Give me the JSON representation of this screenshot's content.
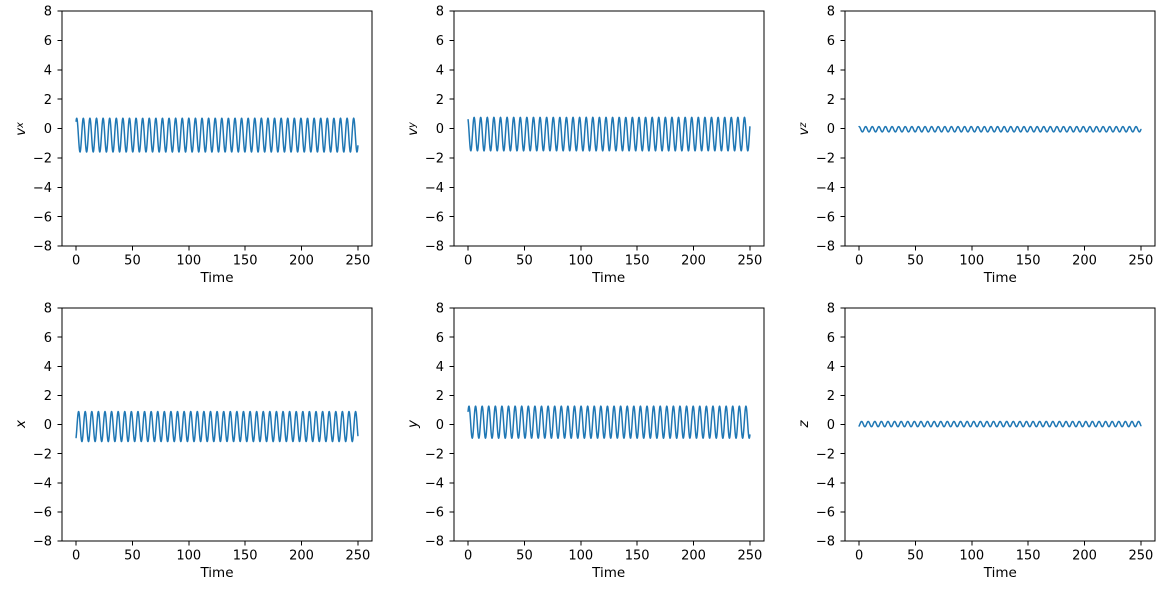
{
  "figure": {
    "background": "#ffffff",
    "rows": 2,
    "cols": 3,
    "axes_color": "#000000"
  },
  "chart_data": [
    {
      "id": "vx",
      "type": "line",
      "title": "",
      "xlabel": "Time",
      "ylabel": {
        "base": "v",
        "sub": "x"
      },
      "xlim": [
        -12.5,
        262.5
      ],
      "ylim": [
        -8,
        8
      ],
      "xticks": [
        0,
        50,
        100,
        150,
        200,
        250
      ],
      "yticks": [
        -8,
        -6,
        -4,
        -2,
        0,
        2,
        4,
        6,
        8
      ],
      "grid": false,
      "legend": "none",
      "line_color": "#1f77b4",
      "series": [
        {
          "name": "vx",
          "shape": "sinusoid",
          "t_start": 0,
          "t_end": 250,
          "mean": -0.45,
          "amplitude": 1.15,
          "period": 5.85,
          "phase_rad": -0.6,
          "observed_min": -1.6,
          "observed_max": 0.7,
          "summary": "constant-amplitude rapid oscillation, ~43 cycles over 0-250"
        }
      ]
    },
    {
      "id": "vy",
      "type": "line",
      "title": "",
      "xlabel": "Time",
      "ylabel": {
        "base": "v",
        "sub": "y"
      },
      "xlim": [
        -12.5,
        262.5
      ],
      "ylim": [
        -8,
        8
      ],
      "xticks": [
        0,
        50,
        100,
        150,
        200,
        250
      ],
      "yticks": [
        -8,
        -6,
        -4,
        -2,
        0,
        2,
        4,
        6,
        8
      ],
      "grid": false,
      "legend": "none",
      "line_color": "#1f77b4",
      "series": [
        {
          "name": "vy",
          "shape": "sinusoid",
          "t_start": 0,
          "t_end": 250,
          "mean": -0.38,
          "amplitude": 1.14,
          "period": 5.85,
          "phase_rad": 0.54,
          "observed_min": -1.52,
          "observed_max": 0.76,
          "summary": "constant-amplitude rapid oscillation, ~43 cycles over 0-250"
        }
      ]
    },
    {
      "id": "vz",
      "type": "line",
      "title": "",
      "xlabel": "Time",
      "ylabel": {
        "base": "v",
        "sub": "z"
      },
      "xlim": [
        -12.5,
        262.5
      ],
      "ylim": [
        -8,
        8
      ],
      "xticks": [
        0,
        50,
        100,
        150,
        200,
        250
      ],
      "yticks": [
        -8,
        -6,
        -4,
        -2,
        0,
        2,
        4,
        6,
        8
      ],
      "grid": false,
      "legend": "none",
      "line_color": "#1f77b4",
      "series": [
        {
          "name": "vz",
          "shape": "sinusoid",
          "t_start": 0,
          "t_end": 250,
          "mean": -0.05,
          "amplitude": 0.18,
          "period": 5.85,
          "phase_rad": 0.0,
          "observed_min": -0.23,
          "observed_max": 0.13,
          "summary": "small-amplitude ripple around zero, ~43 cycles over 0-250"
        }
      ]
    },
    {
      "id": "x",
      "type": "line",
      "title": "",
      "xlabel": "Time",
      "ylabel": {
        "base": "x",
        "sub": ""
      },
      "xlim": [
        -12.5,
        262.5
      ],
      "ylim": [
        -8,
        8
      ],
      "xticks": [
        0,
        50,
        100,
        150,
        200,
        250
      ],
      "yticks": [
        -8,
        -6,
        -4,
        -2,
        0,
        2,
        4,
        6,
        8
      ],
      "grid": false,
      "legend": "none",
      "line_color": "#1f77b4",
      "series": [
        {
          "name": "x",
          "shape": "sinusoid",
          "t_start": 0,
          "t_end": 250,
          "mean": -0.14,
          "amplitude": 1.03,
          "period": 5.85,
          "phase_rad": -2.4,
          "observed_min": -1.17,
          "observed_max": 0.89,
          "summary": "constant-amplitude rapid oscillation, ~43 cycles over 0-250"
        }
      ]
    },
    {
      "id": "y",
      "type": "line",
      "title": "",
      "xlabel": "Time",
      "ylabel": {
        "base": "y",
        "sub": ""
      },
      "xlim": [
        -12.5,
        262.5
      ],
      "ylim": [
        -8,
        8
      ],
      "xticks": [
        0,
        50,
        100,
        150,
        200,
        250
      ],
      "yticks": [
        -8,
        -6,
        -4,
        -2,
        0,
        2,
        4,
        6,
        8
      ],
      "grid": false,
      "legend": "none",
      "line_color": "#1f77b4",
      "series": [
        {
          "name": "y",
          "shape": "sinusoid",
          "t_start": 0,
          "t_end": 250,
          "mean": 0.16,
          "amplitude": 1.1,
          "period": 5.85,
          "phase_rad": -0.83,
          "observed_min": -0.94,
          "observed_max": 1.26,
          "summary": "constant-amplitude rapid oscillation offset slightly above zero, ~43 cycles"
        }
      ]
    },
    {
      "id": "z",
      "type": "line",
      "title": "",
      "xlabel": "Time",
      "ylabel": {
        "base": "z",
        "sub": ""
      },
      "xlim": [
        -12.5,
        262.5
      ],
      "ylim": [
        -8,
        8
      ],
      "xticks": [
        0,
        50,
        100,
        150,
        200,
        250
      ],
      "yticks": [
        -8,
        -6,
        -4,
        -2,
        0,
        2,
        4,
        6,
        8
      ],
      "grid": false,
      "legend": "none",
      "line_color": "#1f77b4",
      "series": [
        {
          "name": "z",
          "shape": "sinusoid",
          "t_start": 0,
          "t_end": 250,
          "mean": 0.03,
          "amplitude": 0.18,
          "period": 5.85,
          "phase_rad": -2.4,
          "observed_min": -0.15,
          "observed_max": 0.21,
          "summary": "small-amplitude ripple just above zero, ~43 cycles over 0-250"
        }
      ]
    }
  ]
}
